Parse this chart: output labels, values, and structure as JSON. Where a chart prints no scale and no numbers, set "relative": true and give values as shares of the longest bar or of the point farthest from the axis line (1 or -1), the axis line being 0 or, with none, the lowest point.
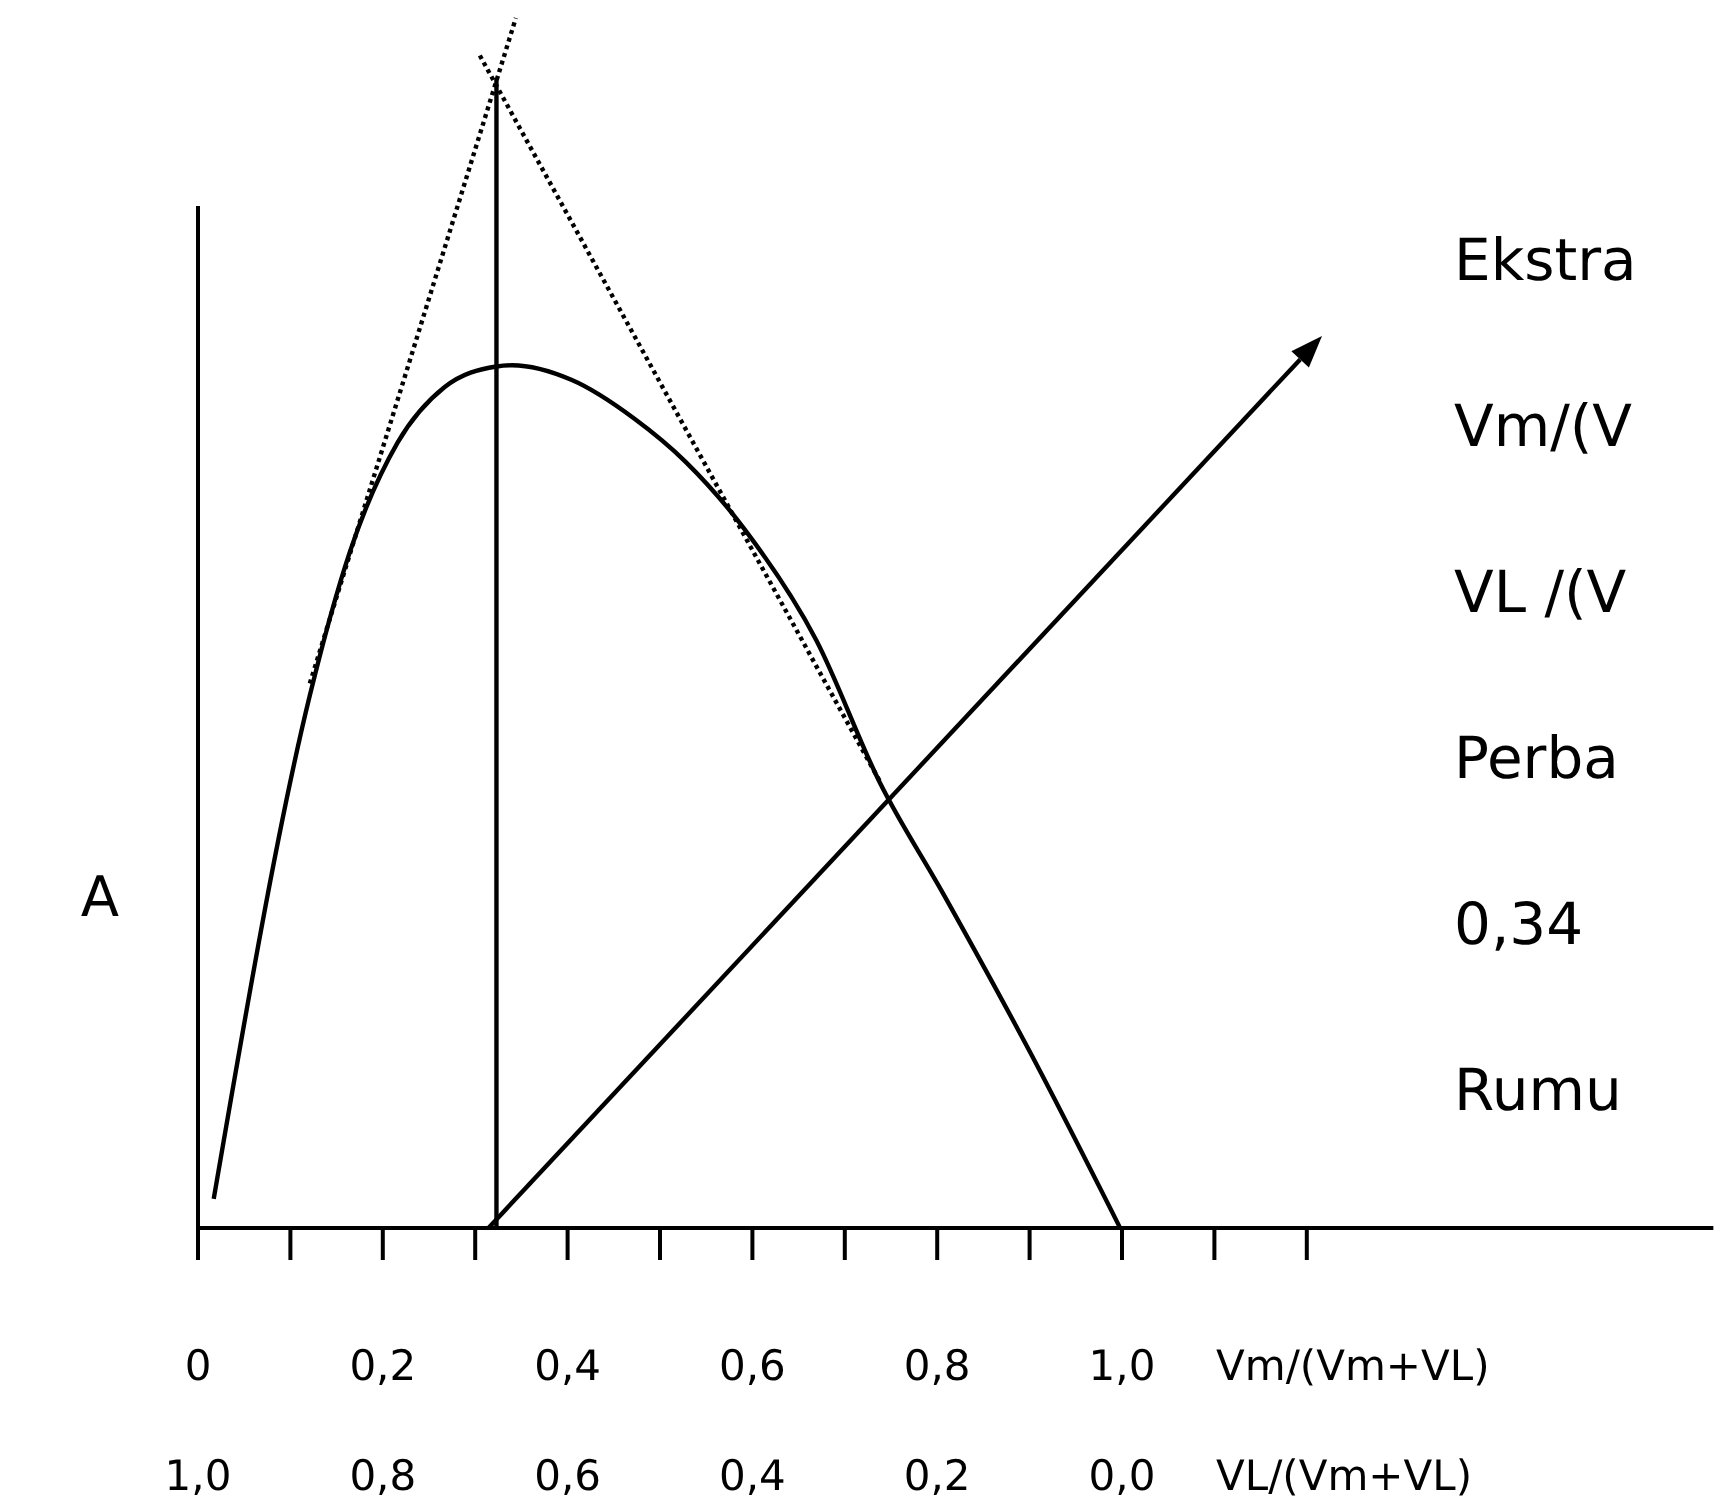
{
  "chart_data": {
    "type": "line",
    "relative": true,
    "ylabel": "A",
    "xlabel": "Vm/(Vm+VL)",
    "x2label": "VL/(Vm+VL)",
    "xlim": [
      0,
      1.64
    ],
    "xticks": [
      {
        "value": 0,
        "label": "0"
      },
      {
        "value": 0.1,
        "label": null
      },
      {
        "value": 0.2,
        "label": "0,2"
      },
      {
        "value": 0.3,
        "label": null
      },
      {
        "value": 0.4,
        "label": "0,4"
      },
      {
        "value": 0.5,
        "label": null
      },
      {
        "value": 0.6,
        "label": "0,6"
      },
      {
        "value": 0.7,
        "label": null
      },
      {
        "value": 0.8,
        "label": "0,8"
      },
      {
        "value": 0.9,
        "label": null
      },
      {
        "value": 1.0,
        "label": "1,0"
      },
      {
        "value": 1.1,
        "label": null
      },
      {
        "value": 1.2,
        "label": null
      }
    ],
    "x2lim": [
      1,
      -0.64
    ],
    "x2ticks": [
      {
        "value": 1.0,
        "label": "1,0"
      },
      {
        "value": 0.8,
        "label": "0,8"
      },
      {
        "value": 0.6,
        "label": "0,6"
      },
      {
        "value": 0.4,
        "label": "0,4"
      },
      {
        "value": 0.2,
        "label": "0,2"
      },
      {
        "value": 0.0,
        "label": "0,0"
      }
    ],
    "series": [
      {
        "color": "#000000",
        "line_style": "solid",
        "x": [
          0.017,
          0.121,
          0.164,
          0.216,
          0.267,
          0.323,
          0.34,
          0.404,
          0.472,
          0.528,
          0.592,
          0.669,
          0.738,
          0.806,
          0.9,
          0.998
        ],
        "values": [
          0.024,
          0.44,
          0.558,
          0.649,
          0.695,
          0.712,
          0.713,
          0.701,
          0.669,
          0.633,
          0.577,
          0.486,
          0.368,
          0.277,
          0.146,
          0
        ]
      },
      {
        "color": "#000000",
        "line_style": "dotted",
        "x": [
          0.121,
          0.344
        ],
        "values": [
          0.45,
          1.0
        ]
      },
      {
        "color": "#000000",
        "line_style": "dotted",
        "x": [
          0.305,
          0.738
        ],
        "values": [
          0.969,
          0.369
        ]
      },
      {
        "color": "#000000",
        "line_style": "solid",
        "x": [
          0.323,
          0.323
        ],
        "values": [
          0,
          0.95
        ]
      }
    ],
    "annotations": [
      "Ekstra",
      "Vm/(V",
      "VL /(V",
      "Perba",
      "0,34",
      "Rumu"
    ]
  }
}
